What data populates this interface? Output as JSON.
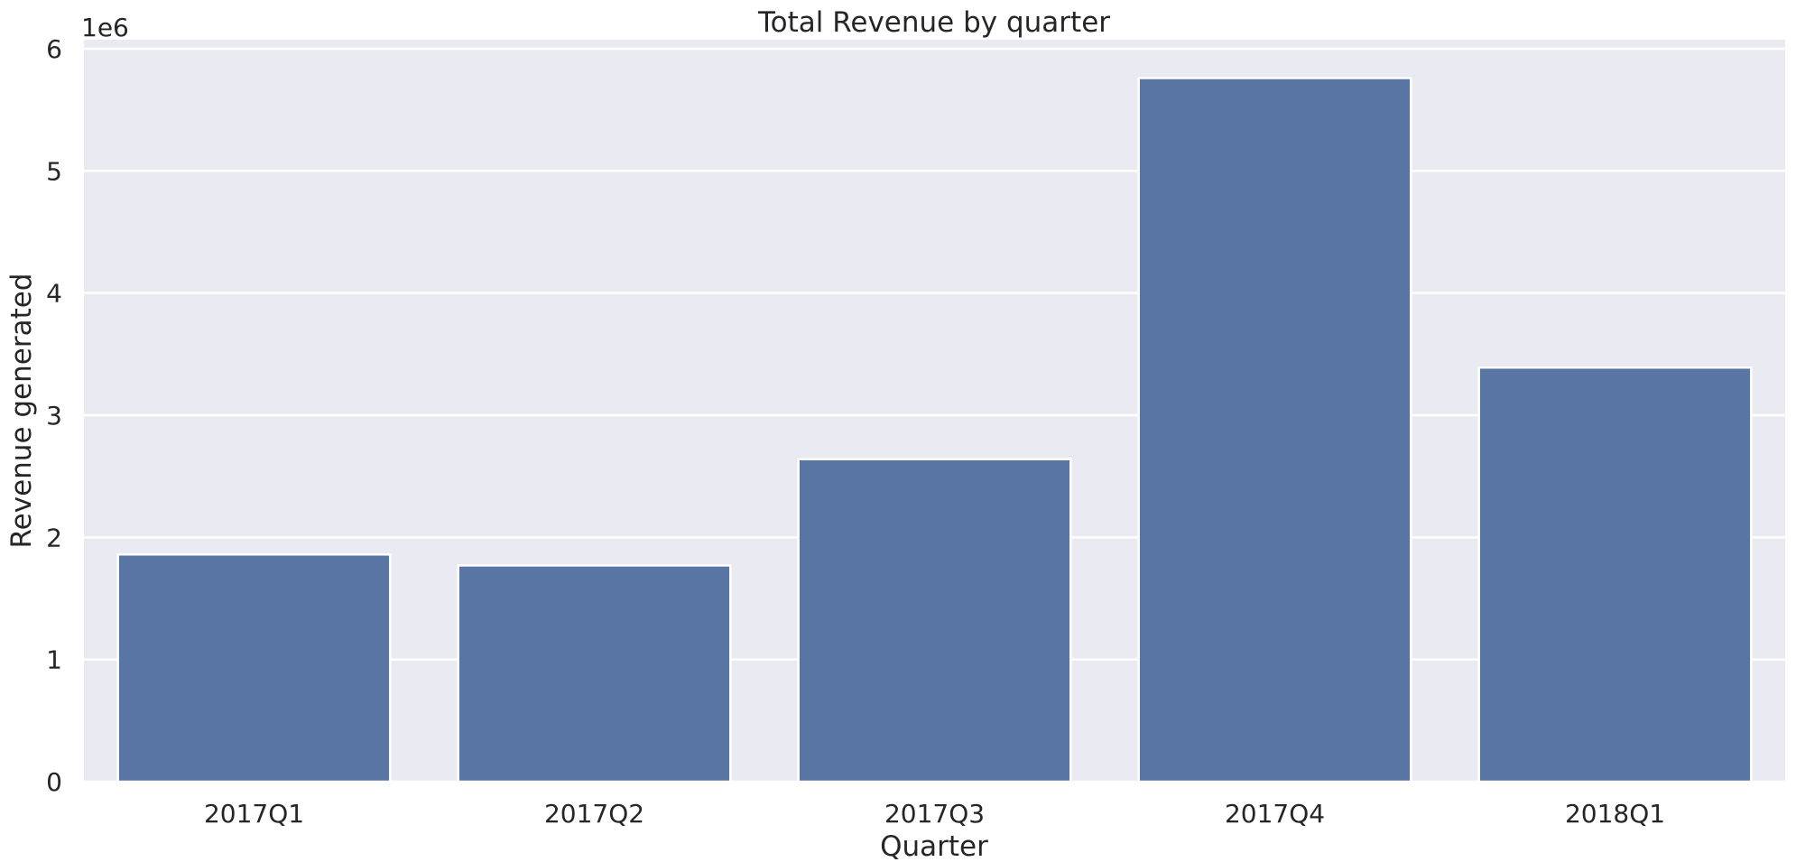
{
  "chart_data": {
    "type": "bar",
    "title": "Total Revenue by quarter",
    "xlabel": "Quarter",
    "ylabel": "Revenue generated",
    "y_offset_label": "1e6",
    "categories": [
      "2017Q1",
      "2017Q2",
      "2017Q3",
      "2017Q4",
      "2018Q1"
    ],
    "values": [
      1860000,
      1770000,
      2640000,
      5760000,
      3390000
    ],
    "y_ticks": [
      0,
      1,
      2,
      3,
      4,
      5,
      6
    ],
    "y_scale": 1000000,
    "ylim": [
      0,
      6000000
    ],
    "grid": true,
    "colors": {
      "bar": "#5975a4",
      "background": "#eaeaf2",
      "grid": "#ffffff"
    }
  }
}
